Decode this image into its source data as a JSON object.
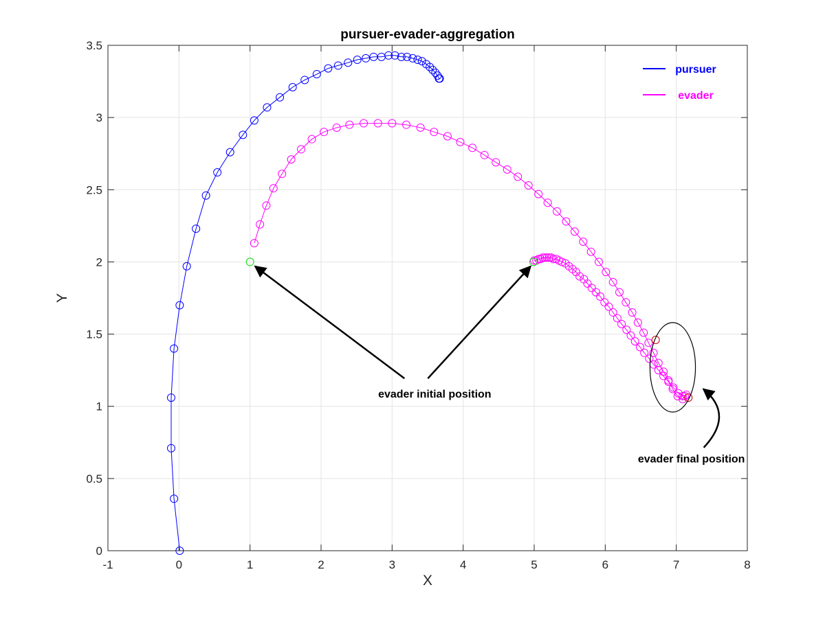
{
  "chart_data": {
    "type": "line",
    "title": "pursuer-evader-aggregation",
    "xlabel": "X",
    "ylabel": "Y",
    "xlim": [
      -1,
      8
    ],
    "ylim": [
      0,
      3.5
    ],
    "xticks": [
      -1,
      0,
      1,
      2,
      3,
      4,
      5,
      6,
      7,
      8
    ],
    "yticks": [
      0,
      0.5,
      1,
      1.5,
      2,
      2.5,
      3,
      3.5
    ],
    "xtick_labels": [
      "-1",
      "0",
      "1",
      "2",
      "3",
      "4",
      "5",
      "6",
      "7",
      "8"
    ],
    "ytick_labels": [
      "0",
      "0.5",
      "1",
      "1.5",
      "2",
      "2.5",
      "3",
      "3.5"
    ],
    "grid": true,
    "legend": {
      "placement": "top-right",
      "entries": [
        {
          "name": "pursuer",
          "color": "#0000ff"
        },
        {
          "name": "evader",
          "color": "#ff00ff"
        }
      ]
    },
    "series": [
      {
        "name": "pursuer",
        "color": "#0000ff",
        "marker": "circle",
        "points": [
          [
            0.01,
            0.0
          ],
          [
            -0.07,
            0.36
          ],
          [
            -0.11,
            0.71
          ],
          [
            -0.11,
            1.06
          ],
          [
            -0.07,
            1.4
          ],
          [
            0.01,
            1.7
          ],
          [
            0.11,
            1.97
          ],
          [
            0.24,
            2.23
          ],
          [
            0.38,
            2.46
          ],
          [
            0.54,
            2.62
          ],
          [
            0.72,
            2.76
          ],
          [
            0.9,
            2.88
          ],
          [
            1.06,
            2.98
          ],
          [
            1.24,
            3.07
          ],
          [
            1.42,
            3.14
          ],
          [
            1.6,
            3.21
          ],
          [
            1.77,
            3.26
          ],
          [
            1.94,
            3.3
          ],
          [
            2.1,
            3.34
          ],
          [
            2.24,
            3.36
          ],
          [
            2.38,
            3.38
          ],
          [
            2.51,
            3.4
          ],
          [
            2.63,
            3.41
          ],
          [
            2.74,
            3.42
          ],
          [
            2.85,
            3.42
          ],
          [
            2.95,
            3.43
          ],
          [
            3.04,
            3.43
          ],
          [
            3.13,
            3.42
          ],
          [
            3.21,
            3.42
          ],
          [
            3.29,
            3.41
          ],
          [
            3.36,
            3.4
          ],
          [
            3.42,
            3.39
          ],
          [
            3.48,
            3.37
          ],
          [
            3.53,
            3.35
          ],
          [
            3.57,
            3.33
          ],
          [
            3.61,
            3.31
          ],
          [
            3.64,
            3.29
          ],
          [
            3.66,
            3.27
          ],
          [
            3.67,
            3.27
          ]
        ]
      },
      {
        "name": "evader",
        "color": "#ff00ff",
        "marker": "circle",
        "points": [
          [
            1.06,
            2.13
          ],
          [
            1.14,
            2.26
          ],
          [
            1.23,
            2.39
          ],
          [
            1.33,
            2.51
          ],
          [
            1.45,
            2.61
          ],
          [
            1.58,
            2.71
          ],
          [
            1.72,
            2.78
          ],
          [
            1.87,
            2.85
          ],
          [
            2.04,
            2.9
          ],
          [
            2.22,
            2.93
          ],
          [
            2.4,
            2.95
          ],
          [
            2.6,
            2.96
          ],
          [
            2.8,
            2.96
          ],
          [
            3.0,
            2.96
          ],
          [
            3.2,
            2.95
          ],
          [
            3.4,
            2.93
          ],
          [
            3.59,
            2.9
          ],
          [
            3.78,
            2.87
          ],
          [
            3.96,
            2.83
          ],
          [
            4.13,
            2.79
          ],
          [
            4.3,
            2.74
          ],
          [
            4.46,
            2.69
          ],
          [
            4.62,
            2.64
          ],
          [
            4.77,
            2.59
          ],
          [
            4.92,
            2.53
          ],
          [
            5.06,
            2.47
          ],
          [
            5.19,
            2.41
          ],
          [
            5.32,
            2.35
          ],
          [
            5.45,
            2.28
          ],
          [
            5.57,
            2.21
          ],
          [
            5.69,
            2.14
          ],
          [
            5.8,
            2.07
          ],
          [
            5.91,
            2.0
          ],
          [
            6.01,
            1.93
          ],
          [
            6.11,
            1.86
          ],
          [
            6.2,
            1.79
          ],
          [
            6.29,
            1.72
          ],
          [
            6.38,
            1.65
          ],
          [
            6.46,
            1.58
          ],
          [
            6.54,
            1.51
          ],
          [
            6.61,
            1.44
          ],
          [
            6.68,
            1.37
          ],
          [
            6.75,
            1.3
          ],
          [
            6.82,
            1.24
          ],
          [
            6.89,
            1.18
          ],
          [
            6.95,
            1.12
          ],
          [
            7.02,
            1.07
          ],
          [
            7.09,
            1.05
          ],
          [
            7.12,
            1.07
          ]
        ]
      },
      {
        "name": "evader",
        "color": "#ff00ff",
        "marker": "circle",
        "points": [
          [
            5.0,
            2.01
          ],
          [
            5.03,
            2.01
          ],
          [
            5.06,
            2.02
          ],
          [
            5.09,
            2.02
          ],
          [
            5.12,
            2.03
          ],
          [
            5.15,
            2.03
          ],
          [
            5.18,
            2.03
          ],
          [
            5.21,
            2.03
          ],
          [
            5.24,
            2.03
          ],
          [
            5.27,
            2.02
          ],
          [
            5.31,
            2.02
          ],
          [
            5.35,
            2.01
          ],
          [
            5.39,
            2.0
          ],
          [
            5.44,
            1.99
          ],
          [
            5.49,
            1.97
          ],
          [
            5.54,
            1.95
          ],
          [
            5.59,
            1.93
          ],
          [
            5.64,
            1.9
          ],
          [
            5.7,
            1.88
          ],
          [
            5.75,
            1.85
          ],
          [
            5.81,
            1.82
          ],
          [
            5.87,
            1.79
          ],
          [
            5.93,
            1.76
          ],
          [
            5.99,
            1.72
          ],
          [
            6.05,
            1.69
          ],
          [
            6.11,
            1.65
          ],
          [
            6.17,
            1.61
          ],
          [
            6.23,
            1.57
          ],
          [
            6.3,
            1.53
          ],
          [
            6.36,
            1.49
          ],
          [
            6.42,
            1.45
          ],
          [
            6.49,
            1.41
          ],
          [
            6.55,
            1.37
          ],
          [
            6.62,
            1.33
          ],
          [
            6.68,
            1.29
          ],
          [
            6.75,
            1.25
          ],
          [
            6.82,
            1.21
          ],
          [
            6.89,
            1.17
          ],
          [
            6.96,
            1.13
          ],
          [
            7.03,
            1.09
          ],
          [
            7.09,
            1.07
          ],
          [
            7.14,
            1.08
          ]
        ]
      }
    ],
    "initial_markers": {
      "color": "#00dd00",
      "points": [
        [
          1.0,
          2.0
        ],
        [
          4.99,
          2.0
        ]
      ]
    },
    "final_markers": {
      "color": "#cc0000",
      "points": [
        [
          6.71,
          1.46
        ],
        [
          7.17,
          1.06
        ]
      ]
    },
    "ellipse": {
      "center": [
        6.95,
        1.27
      ],
      "rx": 0.32,
      "ry": 0.31
    },
    "annotations": [
      {
        "text": "evader initial position",
        "x": 3.6,
        "y": 1.06
      },
      {
        "text": "evader final position",
        "x": 7.0,
        "y": 0.61
      }
    ]
  }
}
